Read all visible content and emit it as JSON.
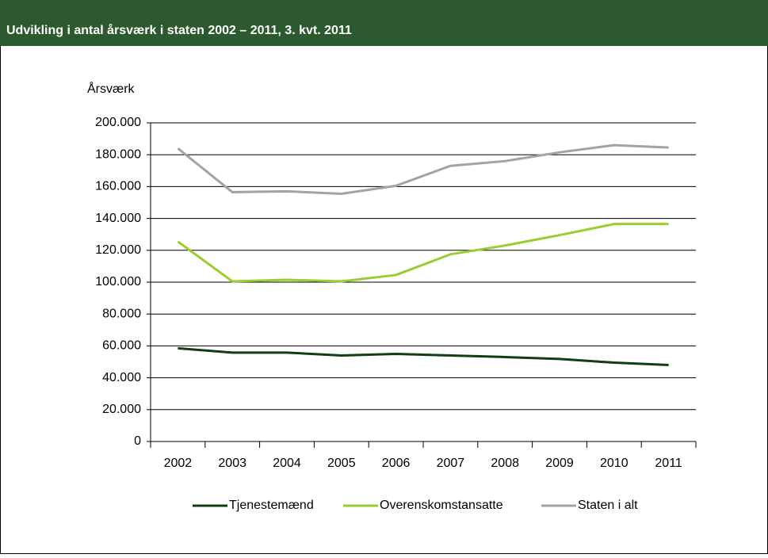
{
  "chart_data": {
    "type": "line",
    "title": "Udvikling i antal årsværk i staten 2002 – 2011, 3. kvt. 2011",
    "y_label": "Årsværk",
    "categories": [
      "2002",
      "2003",
      "2004",
      "2005",
      "2006",
      "2007",
      "2008",
      "2009",
      "2010",
      "2011"
    ],
    "series": [
      {
        "name": "Tjenestemænd",
        "color": "#0f3d14",
        "values": [
          58500,
          55800,
          55800,
          54000,
          55000,
          54000,
          53000,
          51800,
          49500,
          48000
        ]
      },
      {
        "name": "Overenskomstansatte",
        "color": "#9acd2e",
        "values": [
          125500,
          100500,
          101500,
          100500,
          104500,
          117500,
          123000,
          129500,
          136500,
          136500
        ]
      },
      {
        "name": "Staten i alt",
        "color": "#a3a3a3",
        "values": [
          184000,
          156500,
          157000,
          155500,
          160500,
          173000,
          176000,
          181500,
          186000,
          184500
        ]
      }
    ],
    "ylim": [
      0,
      200000
    ],
    "yticks": [
      0,
      {
        "value": 20000,
        "label": "20.000"
      },
      {
        "value": 40000,
        "label": "40.000"
      },
      {
        "value": 60000,
        "label": "60.000"
      },
      {
        "value": 80000,
        "label": "80.000"
      },
      {
        "value": 100000,
        "label": "100.000"
      },
      {
        "value": 120000,
        "label": "120.000"
      },
      {
        "value": 140000,
        "label": "140.000"
      },
      {
        "value": 160000,
        "label": "160.000"
      },
      {
        "value": 180000,
        "label": "180.000"
      },
      {
        "value": 200000,
        "label": "200.000"
      }
    ],
    "grid": true,
    "legend": "bottom"
  }
}
